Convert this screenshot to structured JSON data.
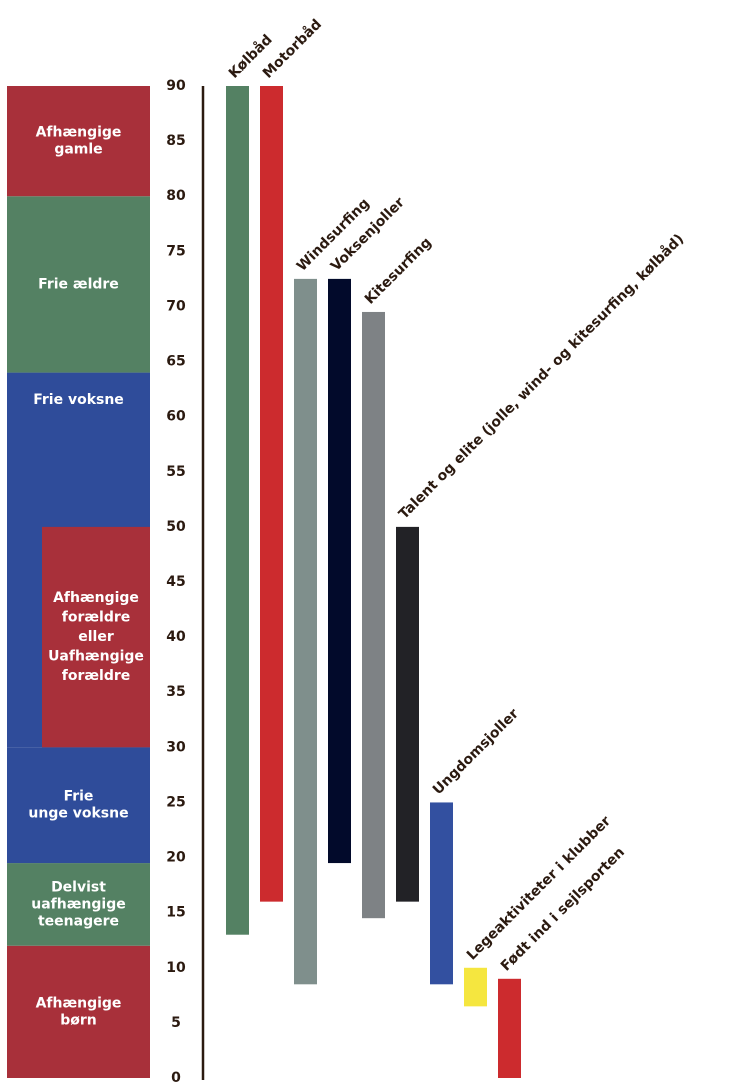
{
  "chart_data": {
    "type": "range_bar",
    "ylim": [
      0,
      90
    ],
    "yticks": [
      0,
      5,
      10,
      15,
      20,
      25,
      30,
      35,
      40,
      45,
      50,
      55,
      60,
      65,
      70,
      75,
      80,
      85,
      90
    ],
    "series": [
      {
        "name": "Kølbåd",
        "color": "#548163",
        "values": [
          13,
          90
        ]
      },
      {
        "name": "Motorbåd",
        "color": "#cc2b2e",
        "values": [
          16,
          90
        ]
      },
      {
        "name": "Windsurfing",
        "color": "#7f8f8c",
        "values": [
          8.5,
          72.5
        ]
      },
      {
        "name": "Voksenjoller",
        "color": "#020a2b",
        "values": [
          19.5,
          72.5
        ]
      },
      {
        "name": "Kitesurfing",
        "color": "#7e8285",
        "values": [
          14.5,
          69.5
        ]
      },
      {
        "name": "Talent og elite (jolle, wind- og kitesurfing, kølbåd)",
        "color": "#222226",
        "values": [
          16,
          50
        ]
      },
      {
        "name": "Ungdomsjoller",
        "color": "#3350a0",
        "values": [
          8.5,
          25
        ]
      },
      {
        "name": "Legeaktiviteter i klubber",
        "color": "#f5e63f",
        "values": [
          6.5,
          10
        ]
      },
      {
        "name": "Født ind i sejlsporten",
        "color": "#cc2b2e",
        "values": [
          0,
          9
        ]
      }
    ],
    "stages": [
      {
        "lines": [
          "Afhængige",
          "børn"
        ],
        "color": "#a8303a",
        "values": [
          0,
          12
        ]
      },
      {
        "lines": [
          "Delvist",
          "uafhængige",
          "teenagere"
        ],
        "color": "#548163",
        "values": [
          12,
          19.5
        ]
      },
      {
        "lines": [
          "Frie",
          "unge voksne"
        ],
        "color": "#2f4c9a",
        "values": [
          19.5,
          30
        ]
      },
      {
        "lines": [
          "Frie voksne"
        ],
        "color": "#2f4c9a",
        "values": [
          30,
          64
        ]
      },
      {
        "lines": [
          "Afhængige",
          "forældre",
          "eller",
          "Uafhængige",
          "forældre"
        ],
        "color": "#a8303a",
        "values": [
          30,
          50
        ]
      },
      {
        "lines": [
          "Frie ældre"
        ],
        "color": "#548163",
        "values": [
          64,
          80
        ]
      },
      {
        "lines": [
          "Afhængige",
          "gamle"
        ],
        "color": "#a8303a",
        "values": [
          80,
          90
        ]
      }
    ]
  }
}
